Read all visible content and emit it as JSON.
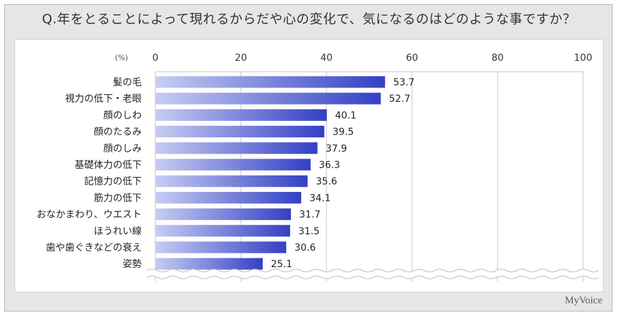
{
  "title": "Q.年をとることによって現れるからだや心の変化で、気になるのはどのような事ですか？",
  "brand": "MyVoice",
  "chart_data": {
    "type": "bar",
    "orientation": "horizontal",
    "unit_label": "(%)",
    "xlim": [
      0,
      100
    ],
    "x_ticks": [
      0,
      20,
      40,
      60,
      80,
      100
    ],
    "grid": true,
    "axis_break": true,
    "categories": [
      "髪の毛",
      "視力の低下・老眼",
      "顔のしわ",
      "顔のたるみ",
      "顔のしみ",
      "基礎体力の低下",
      "記憶力の低下",
      "筋力の低下",
      "おなかまわり、ウエスト",
      "ほうれい線",
      "歯や歯ぐきなどの衰え",
      "姿勢"
    ],
    "values": [
      53.7,
      52.7,
      40.1,
      39.5,
      37.9,
      36.3,
      35.6,
      34.1,
      31.7,
      31.5,
      30.6,
      25.1
    ],
    "value_labels": [
      "53.7",
      "52.7",
      "40.1",
      "39.5",
      "37.9",
      "36.3",
      "35.6",
      "34.1",
      "31.7",
      "31.5",
      "30.6",
      "25.1"
    ],
    "bar_color_light": "#c7cdf2",
    "bar_color_dark": "#3340c4"
  }
}
